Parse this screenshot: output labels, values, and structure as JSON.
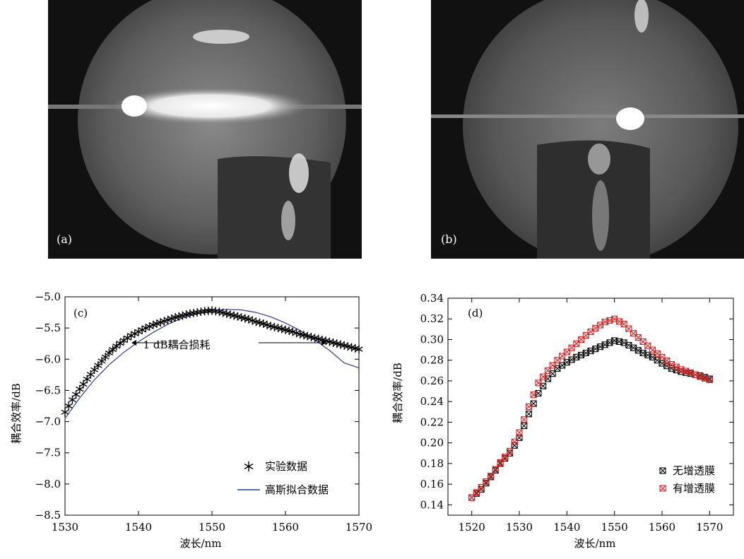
{
  "photos": [
    {
      "label": "(a)"
    },
    {
      "label": "(b)"
    }
  ],
  "chart_data": [
    {
      "type": "scatter",
      "panel_label": "(c)",
      "title": "",
      "xlabel": "波长/nm",
      "ylabel": "耦合效率/dB",
      "xlim": [
        1530,
        1570
      ],
      "ylim": [
        -8.5,
        -5.0
      ],
      "xticks": [
        1530,
        1540,
        1550,
        1560,
        1570
      ],
      "yticks": [
        -8.5,
        -8.0,
        -7.5,
        -7.0,
        -6.5,
        -6.0,
        -5.5,
        -5.0
      ],
      "ytick_labels": [
        "−8.5",
        "−8.0",
        "−7.5",
        "−7.0",
        "−6.5",
        "−6.0",
        "−5.5",
        "−5.0"
      ],
      "annotation": "1 dB耦合损耗",
      "legend_position": "bottom-right",
      "series": [
        {
          "name": "实验数据",
          "marker": "asterisk",
          "color": "#000000",
          "x": [
            1530,
            1531,
            1532,
            1533,
            1534,
            1535,
            1536,
            1537,
            1538,
            1539,
            1540,
            1541,
            1542,
            1543,
            1544,
            1545,
            1546,
            1547,
            1548,
            1549,
            1550,
            1551,
            1552,
            1553,
            1554,
            1555,
            1556,
            1557,
            1558,
            1559,
            1560,
            1561,
            1562,
            1563,
            1564,
            1565,
            1566,
            1567,
            1568,
            1569,
            1570
          ],
          "y": [
            -6.85,
            -6.65,
            -6.48,
            -6.32,
            -6.17,
            -6.03,
            -5.9,
            -5.79,
            -5.7,
            -5.62,
            -5.56,
            -5.5,
            -5.45,
            -5.41,
            -5.37,
            -5.33,
            -5.3,
            -5.27,
            -5.25,
            -5.23,
            -5.22,
            -5.24,
            -5.27,
            -5.3,
            -5.33,
            -5.36,
            -5.4,
            -5.43,
            -5.47,
            -5.5,
            -5.53,
            -5.56,
            -5.6,
            -5.63,
            -5.66,
            -5.69,
            -5.72,
            -5.75,
            -5.78,
            -5.81,
            -5.84
          ]
        },
        {
          "name": "高斯拟合数据",
          "marker": "line",
          "color": "#2e3f9a",
          "x": [
            1530,
            1532,
            1534,
            1536,
            1538,
            1540,
            1542,
            1544,
            1546,
            1548,
            1550,
            1552,
            1554,
            1556,
            1558,
            1560,
            1562,
            1564,
            1566,
            1568,
            1570
          ],
          "y": [
            -6.95,
            -6.62,
            -6.33,
            -6.09,
            -5.89,
            -5.72,
            -5.57,
            -5.44,
            -5.34,
            -5.27,
            -5.22,
            -5.2,
            -5.21,
            -5.25,
            -5.32,
            -5.42,
            -5.54,
            -5.69,
            -5.86,
            -6.06,
            -6.14
          ]
        }
      ]
    },
    {
      "type": "scatter",
      "panel_label": "(d)",
      "title": "",
      "xlabel": "波长/nm",
      "ylabel": "耦合效率/dB",
      "xlim": [
        1515,
        1575
      ],
      "ylim": [
        0.13,
        0.34
      ],
      "xticks": [
        1520,
        1530,
        1540,
        1550,
        1560,
        1570
      ],
      "yticks": [
        0.14,
        0.16,
        0.18,
        0.2,
        0.22,
        0.24,
        0.26,
        0.28,
        0.3,
        0.32,
        0.34
      ],
      "ytick_labels": [
        "0.14",
        "0.16",
        "0.18",
        "0.20",
        "0.22",
        "0.24",
        "0.26",
        "0.28",
        "0.30",
        "0.32",
        "0.34"
      ],
      "legend_position": "bottom-right",
      "series": [
        {
          "name": "无增透膜",
          "marker": "boxed-x",
          "color": "#000000",
          "x": [
            1520,
            1522,
            1524,
            1526,
            1528,
            1530,
            1532,
            1534,
            1536,
            1538,
            1540,
            1542,
            1544,
            1546,
            1548,
            1550,
            1552,
            1554,
            1556,
            1558,
            1560,
            1562,
            1564,
            1566,
            1568,
            1570
          ],
          "y": [
            0.147,
            0.155,
            0.167,
            0.18,
            0.19,
            0.205,
            0.228,
            0.248,
            0.262,
            0.272,
            0.278,
            0.283,
            0.287,
            0.291,
            0.295,
            0.299,
            0.297,
            0.292,
            0.287,
            0.283,
            0.277,
            0.272,
            0.269,
            0.267,
            0.265,
            0.262
          ]
        },
        {
          "name": "有增透膜",
          "marker": "boxed-x",
          "color": "#e02020",
          "x": [
            1520,
            1522,
            1524,
            1526,
            1528,
            1530,
            1532,
            1534,
            1536,
            1538,
            1540,
            1542,
            1544,
            1546,
            1548,
            1550,
            1552,
            1554,
            1556,
            1558,
            1560,
            1562,
            1564,
            1566,
            1568,
            1570
          ],
          "y": [
            0.147,
            0.157,
            0.168,
            0.181,
            0.192,
            0.21,
            0.235,
            0.258,
            0.27,
            0.28,
            0.288,
            0.296,
            0.304,
            0.311,
            0.317,
            0.32,
            0.315,
            0.306,
            0.298,
            0.29,
            0.283,
            0.276,
            0.271,
            0.268,
            0.264,
            0.261
          ]
        }
      ]
    }
  ]
}
